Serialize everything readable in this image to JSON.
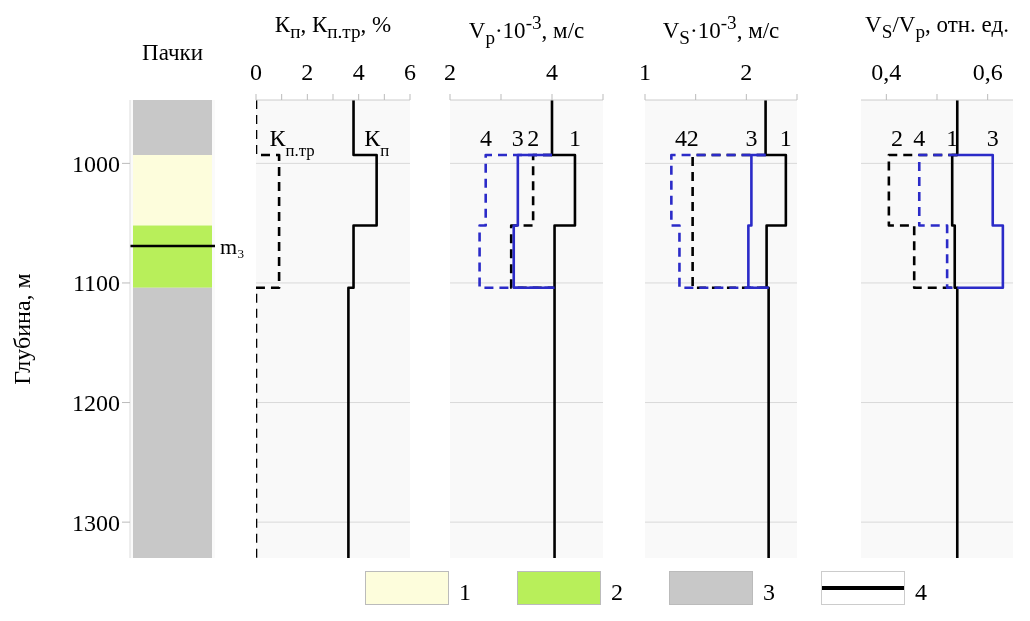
{
  "chart_data": [
    {
      "type": "bar",
      "title": "Пачки",
      "ylabel": "Глубина, м",
      "categories": [
        null
      ],
      "ylim": [
        1330,
        947
      ],
      "yticks": [
        1000,
        1100,
        1200,
        1300
      ],
      "tick_labels": "y",
      "legend": "bottom",
      "series": [
        {
          "name": "1",
          "color": "#fdfddc",
          "base": [
            993
          ],
          "values": [
            59
          ]
        },
        {
          "name": "2",
          "color": "#b8ef5a",
          "base": [
            1052
          ],
          "values": [
            52
          ]
        },
        {
          "name": "3",
          "color": "#c8c8c8",
          "base": [
            1104
          ],
          "values": [
            226
          ]
        },
        {
          "color": "#c8c8c8",
          "base": [
            947
          ],
          "values": [
            46
          ]
        }
      ],
      "ref_lines": [
        {
          "axis": "y",
          "value": 1069,
          "label": "m₃",
          "color": "#000000"
        }
      ],
      "annotations": [
        "4"
      ]
    },
    {
      "type": "line",
      "title": "К$_{п}$, К$_{п.тр}$, %",
      "xlim": [
        0,
        6
      ],
      "xticks": [
        0,
        {
          "value": 1,
          "label": null
        },
        2,
        {
          "value": 3,
          "label": null
        },
        4,
        {
          "value": 5,
          "label": null
        },
        6
      ],
      "ylim": [
        1330,
        947
      ],
      "yticks": [
        1000,
        1100,
        1200,
        1300
      ],
      "grid": "y",
      "tick_labels": "x",
      "marker": "none",
      "series": [
        {
          "name": "К$_{п}$",
          "color": "#000000",
          "line_style": "solid",
          "x": [
            3.8,
            3.8,
            4.7,
            4.7,
            3.8,
            3.8,
            3.6,
            3.6
          ],
          "values": [
            947,
            993,
            993,
            1052,
            1052,
            1104,
            1104,
            1330
          ]
        },
        {
          "name": "К$_{п.тр}$",
          "color": "#000000",
          "line_style": "dashed",
          "x": [
            0,
            0,
            0.9,
            0.9,
            0,
            0
          ],
          "values": [
            947,
            993,
            993,
            1104,
            1104,
            1330
          ]
        }
      ]
    },
    {
      "type": "line",
      "title": "V$_{p}$·10$^{-3}$, м/с",
      "xlim": [
        2,
        5
      ],
      "xticks": [
        2,
        {
          "value": 3,
          "label": null
        },
        4,
        {
          "value": 5,
          "label": null
        }
      ],
      "ylim": [
        1330,
        947
      ],
      "yticks": [
        1000,
        1100,
        1200,
        1300
      ],
      "grid": "y",
      "tick_labels": "x",
      "marker": "none",
      "series": [
        {
          "name": "1",
          "color": "#000000",
          "line_style": "solid",
          "x": [
            4.0,
            4.0,
            4.45,
            4.45,
            4.05,
            4.05
          ],
          "values": [
            947,
            993,
            993,
            1052,
            1052,
            1330
          ]
        },
        {
          "name": "2",
          "color": "#000000",
          "line_style": "dashed",
          "x": [
            4.0,
            3.63,
            3.63,
            3.2,
            3.2,
            4.05
          ],
          "values": [
            993,
            993,
            1052,
            1052,
            1104,
            1104
          ]
        },
        {
          "name": "3",
          "color": "#2b2bc8",
          "line_style": "solid",
          "x": [
            4.0,
            3.33,
            3.33,
            3.25,
            3.25,
            4.05
          ],
          "values": [
            993,
            993,
            1052,
            1052,
            1104,
            1104
          ]
        },
        {
          "name": "4",
          "color": "#2b2bc8",
          "line_style": "dashed",
          "x": [
            4.0,
            2.7,
            2.7,
            2.58,
            2.58,
            4.05
          ],
          "values": [
            993,
            993,
            1052,
            1052,
            1104,
            1104
          ]
        }
      ]
    },
    {
      "type": "line",
      "title": "V$_{S}$·10$^{-3}$, м/с",
      "xlim": [
        1,
        2.5
      ],
      "xticks": [
        1,
        {
          "value": 1.5,
          "label": null
        },
        2,
        {
          "value": 2.5,
          "label": null
        }
      ],
      "ylim": [
        1330,
        947
      ],
      "yticks": [
        1000,
        1100,
        1200,
        1300
      ],
      "grid": "y",
      "tick_labels": "x",
      "marker": "none",
      "series": [
        {
          "name": "1",
          "color": "#000000",
          "line_style": "solid",
          "x": [
            2.19,
            2.19,
            2.39,
            2.39,
            2.2,
            2.2,
            2.22,
            2.22
          ],
          "values": [
            947,
            993,
            993,
            1052,
            1052,
            1104,
            1104,
            1330
          ]
        },
        {
          "name": "2",
          "color": "#000000",
          "line_style": "dashed",
          "x": [
            2.19,
            1.47,
            1.47,
            2.22
          ],
          "values": [
            993,
            993,
            1104,
            1104
          ]
        },
        {
          "name": "3",
          "color": "#2b2bc8",
          "line_style": "solid",
          "x": [
            2.19,
            2.05,
            2.05,
            2.02,
            2.02,
            2.22
          ],
          "values": [
            993,
            993,
            1052,
            1052,
            1104,
            1104
          ]
        },
        {
          "name": "4",
          "color": "#2b2bc8",
          "line_style": "dashed",
          "x": [
            2.19,
            1.26,
            1.26,
            1.34,
            1.34,
            2.22
          ],
          "values": [
            993,
            993,
            1052,
            1052,
            1104,
            1104
          ]
        }
      ]
    },
    {
      "type": "line",
      "title": "V$_{S}$/V$_{p}$, отн. ед.",
      "xlim": [
        0.35,
        0.65
      ],
      "xticks": [
        {
          "value": 0.4,
          "label": "0,4"
        },
        {
          "value": 0.5,
          "label": null
        },
        {
          "value": 0.6,
          "label": "0,6"
        }
      ],
      "ylim": [
        1330,
        947
      ],
      "yticks": [
        1000,
        1100,
        1200,
        1300
      ],
      "grid": "y",
      "tick_labels": "x",
      "marker": "none",
      "series": [
        {
          "name": "1",
          "color": "#000000",
          "line_style": "solid",
          "x": [
            0.54,
            0.54,
            0.53,
            0.53,
            0.535,
            0.535,
            0.54,
            0.54
          ],
          "values": [
            947,
            993,
            993,
            1052,
            1052,
            1104,
            1104,
            1330
          ]
        },
        {
          "name": "2",
          "color": "#000000",
          "line_style": "dashed",
          "x": [
            0.54,
            0.405,
            0.405,
            0.455,
            0.455,
            0.54
          ],
          "values": [
            993,
            993,
            1052,
            1052,
            1104,
            1104
          ]
        },
        {
          "name": "3",
          "color": "#2b2bc8",
          "line_style": "solid",
          "x": [
            0.54,
            0.61,
            0.61,
            0.63,
            0.63,
            0.54
          ],
          "values": [
            993,
            993,
            1052,
            1052,
            1104,
            1104
          ]
        },
        {
          "name": "4",
          "color": "#2b2bc8",
          "line_style": "dashed",
          "x": [
            0.54,
            0.465,
            0.465,
            0.52,
            0.52,
            0.54
          ],
          "values": [
            993,
            993,
            1052,
            1052,
            1104,
            1104
          ]
        }
      ]
    }
  ]
}
